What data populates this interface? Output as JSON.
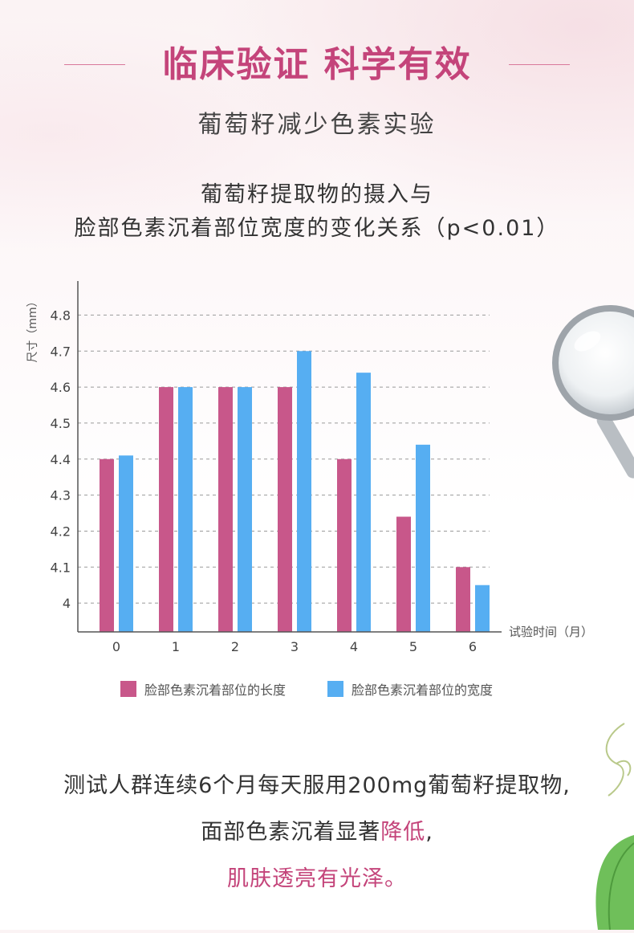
{
  "header": {
    "title": "临床验证  科学有效",
    "subtitle": "葡萄籽减少色素实验"
  },
  "chart_header": {
    "line1": "葡萄籽提取物的摄入与",
    "line2": "脸部色素沉着部位宽度的变化关系（p<0.01）"
  },
  "colors": {
    "accent": "#c4447a",
    "series_length": "#c8578a",
    "series_width": "#56aef2"
  },
  "chart_data": {
    "type": "bar",
    "ylabel": "尺寸（mm）",
    "xlabel": "试验时间（月）",
    "ylim": [
      3.92,
      4.85
    ],
    "yticks": [
      "4",
      "4.1",
      "4.2",
      "4.3",
      "4.4",
      "4.5",
      "4.6",
      "4.7",
      "4.8"
    ],
    "grid": true,
    "legend_position": "bottom",
    "categories": [
      "0",
      "1",
      "2",
      "3",
      "4",
      "5",
      "6"
    ],
    "series": [
      {
        "name": "脸部色素沉着部位的长度",
        "values": [
          4.4,
          4.6,
          4.6,
          4.6,
          4.4,
          4.24,
          4.1
        ]
      },
      {
        "name": "脸部色素沉着部位的宽度",
        "values": [
          4.41,
          4.6,
          4.6,
          4.7,
          4.64,
          4.44,
          4.05
        ]
      }
    ]
  },
  "footer": {
    "line1": "测试人群连续6个月每天服用200mg葡萄籽提取物,",
    "line2_prefix": "面部色素沉着显著",
    "line2_highlight": "降低",
    "line2_suffix": ",",
    "line3": "肌肤透亮有光泽。"
  }
}
